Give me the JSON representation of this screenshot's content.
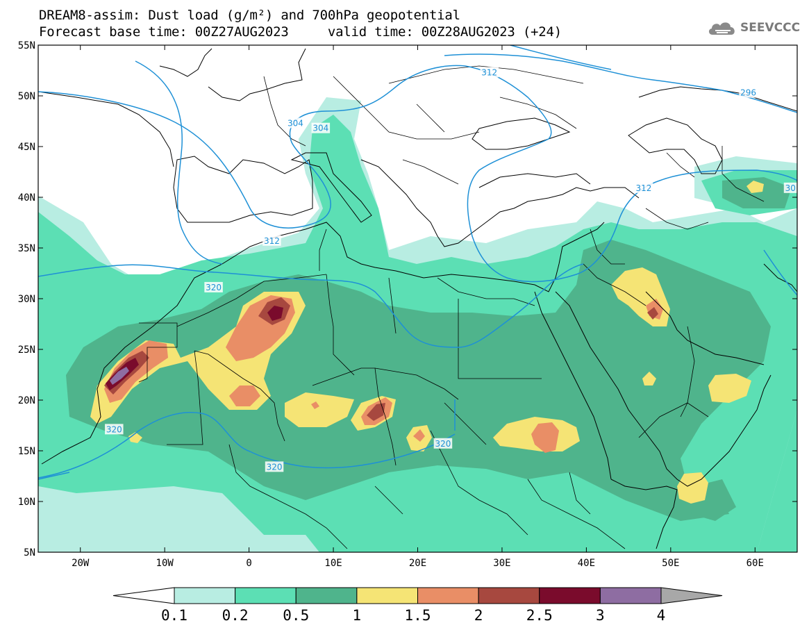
{
  "title": {
    "line1": "DREAM8-assim: Dust load (g/m²) and 700hPa geopotential",
    "line2": "Forecast base time: 00Z27AUG2023     valid time: 00Z28AUG2023 (+24)"
  },
  "logo": {
    "text": "SEEVCCC",
    "icon": "cloud-icon"
  },
  "axes": {
    "lon_range": [
      -25,
      65
    ],
    "lat_range": [
      5,
      55
    ],
    "x_ticks": [
      {
        "value": -20,
        "label": "20W"
      },
      {
        "value": -10,
        "label": "10W"
      },
      {
        "value": 0,
        "label": "0"
      },
      {
        "value": 10,
        "label": "10E"
      },
      {
        "value": 20,
        "label": "20E"
      },
      {
        "value": 30,
        "label": "30E"
      },
      {
        "value": 40,
        "label": "40E"
      },
      {
        "value": 50,
        "label": "50E"
      },
      {
        "value": 60,
        "label": "60E"
      }
    ],
    "y_ticks": [
      {
        "value": 55,
        "label": "55N"
      },
      {
        "value": 50,
        "label": "50N"
      },
      {
        "value": 45,
        "label": "45N"
      },
      {
        "value": 40,
        "label": "40N"
      },
      {
        "value": 35,
        "label": "35N"
      },
      {
        "value": 30,
        "label": "30N"
      },
      {
        "value": 25,
        "label": "25N"
      },
      {
        "value": 20,
        "label": "20N"
      },
      {
        "value": 15,
        "label": "15N"
      },
      {
        "value": 10,
        "label": "10N"
      },
      {
        "value": 5,
        "label": "5N"
      }
    ]
  },
  "contour_labels": [
    {
      "text": "304",
      "lon": 5.5,
      "lat": 47.3
    },
    {
      "text": "304",
      "lon": 8.5,
      "lat": 46.8
    },
    {
      "text": "312",
      "lon": 28.5,
      "lat": 52.3
    },
    {
      "text": "296",
      "lon": 59.2,
      "lat": 50.3
    },
    {
      "text": "312",
      "lon": 2.7,
      "lat": 35.7
    },
    {
      "text": "312",
      "lon": 46.8,
      "lat": 40.9
    },
    {
      "text": "30",
      "lon": 64.2,
      "lat": 40.9
    },
    {
      "text": "320",
      "lon": -4.2,
      "lat": 31.1
    },
    {
      "text": "320",
      "lon": -16,
      "lat": 17.1
    },
    {
      "text": "320",
      "lon": 23,
      "lat": 15.7
    },
    {
      "text": "320",
      "lon": 3,
      "lat": 13.4
    }
  ],
  "colorbar": {
    "colors": [
      "#ffffff",
      "#b8ede2",
      "#5cdfb4",
      "#4fb48c",
      "#f5e475",
      "#e98e66",
      "#a7483f",
      "#7a0b2c",
      "#8e6da2",
      "#a8a8a8"
    ],
    "labels": [
      "0.1",
      "0.2",
      "0.5",
      "1",
      "1.5",
      "2",
      "2.5",
      "3",
      "4"
    ]
  }
}
